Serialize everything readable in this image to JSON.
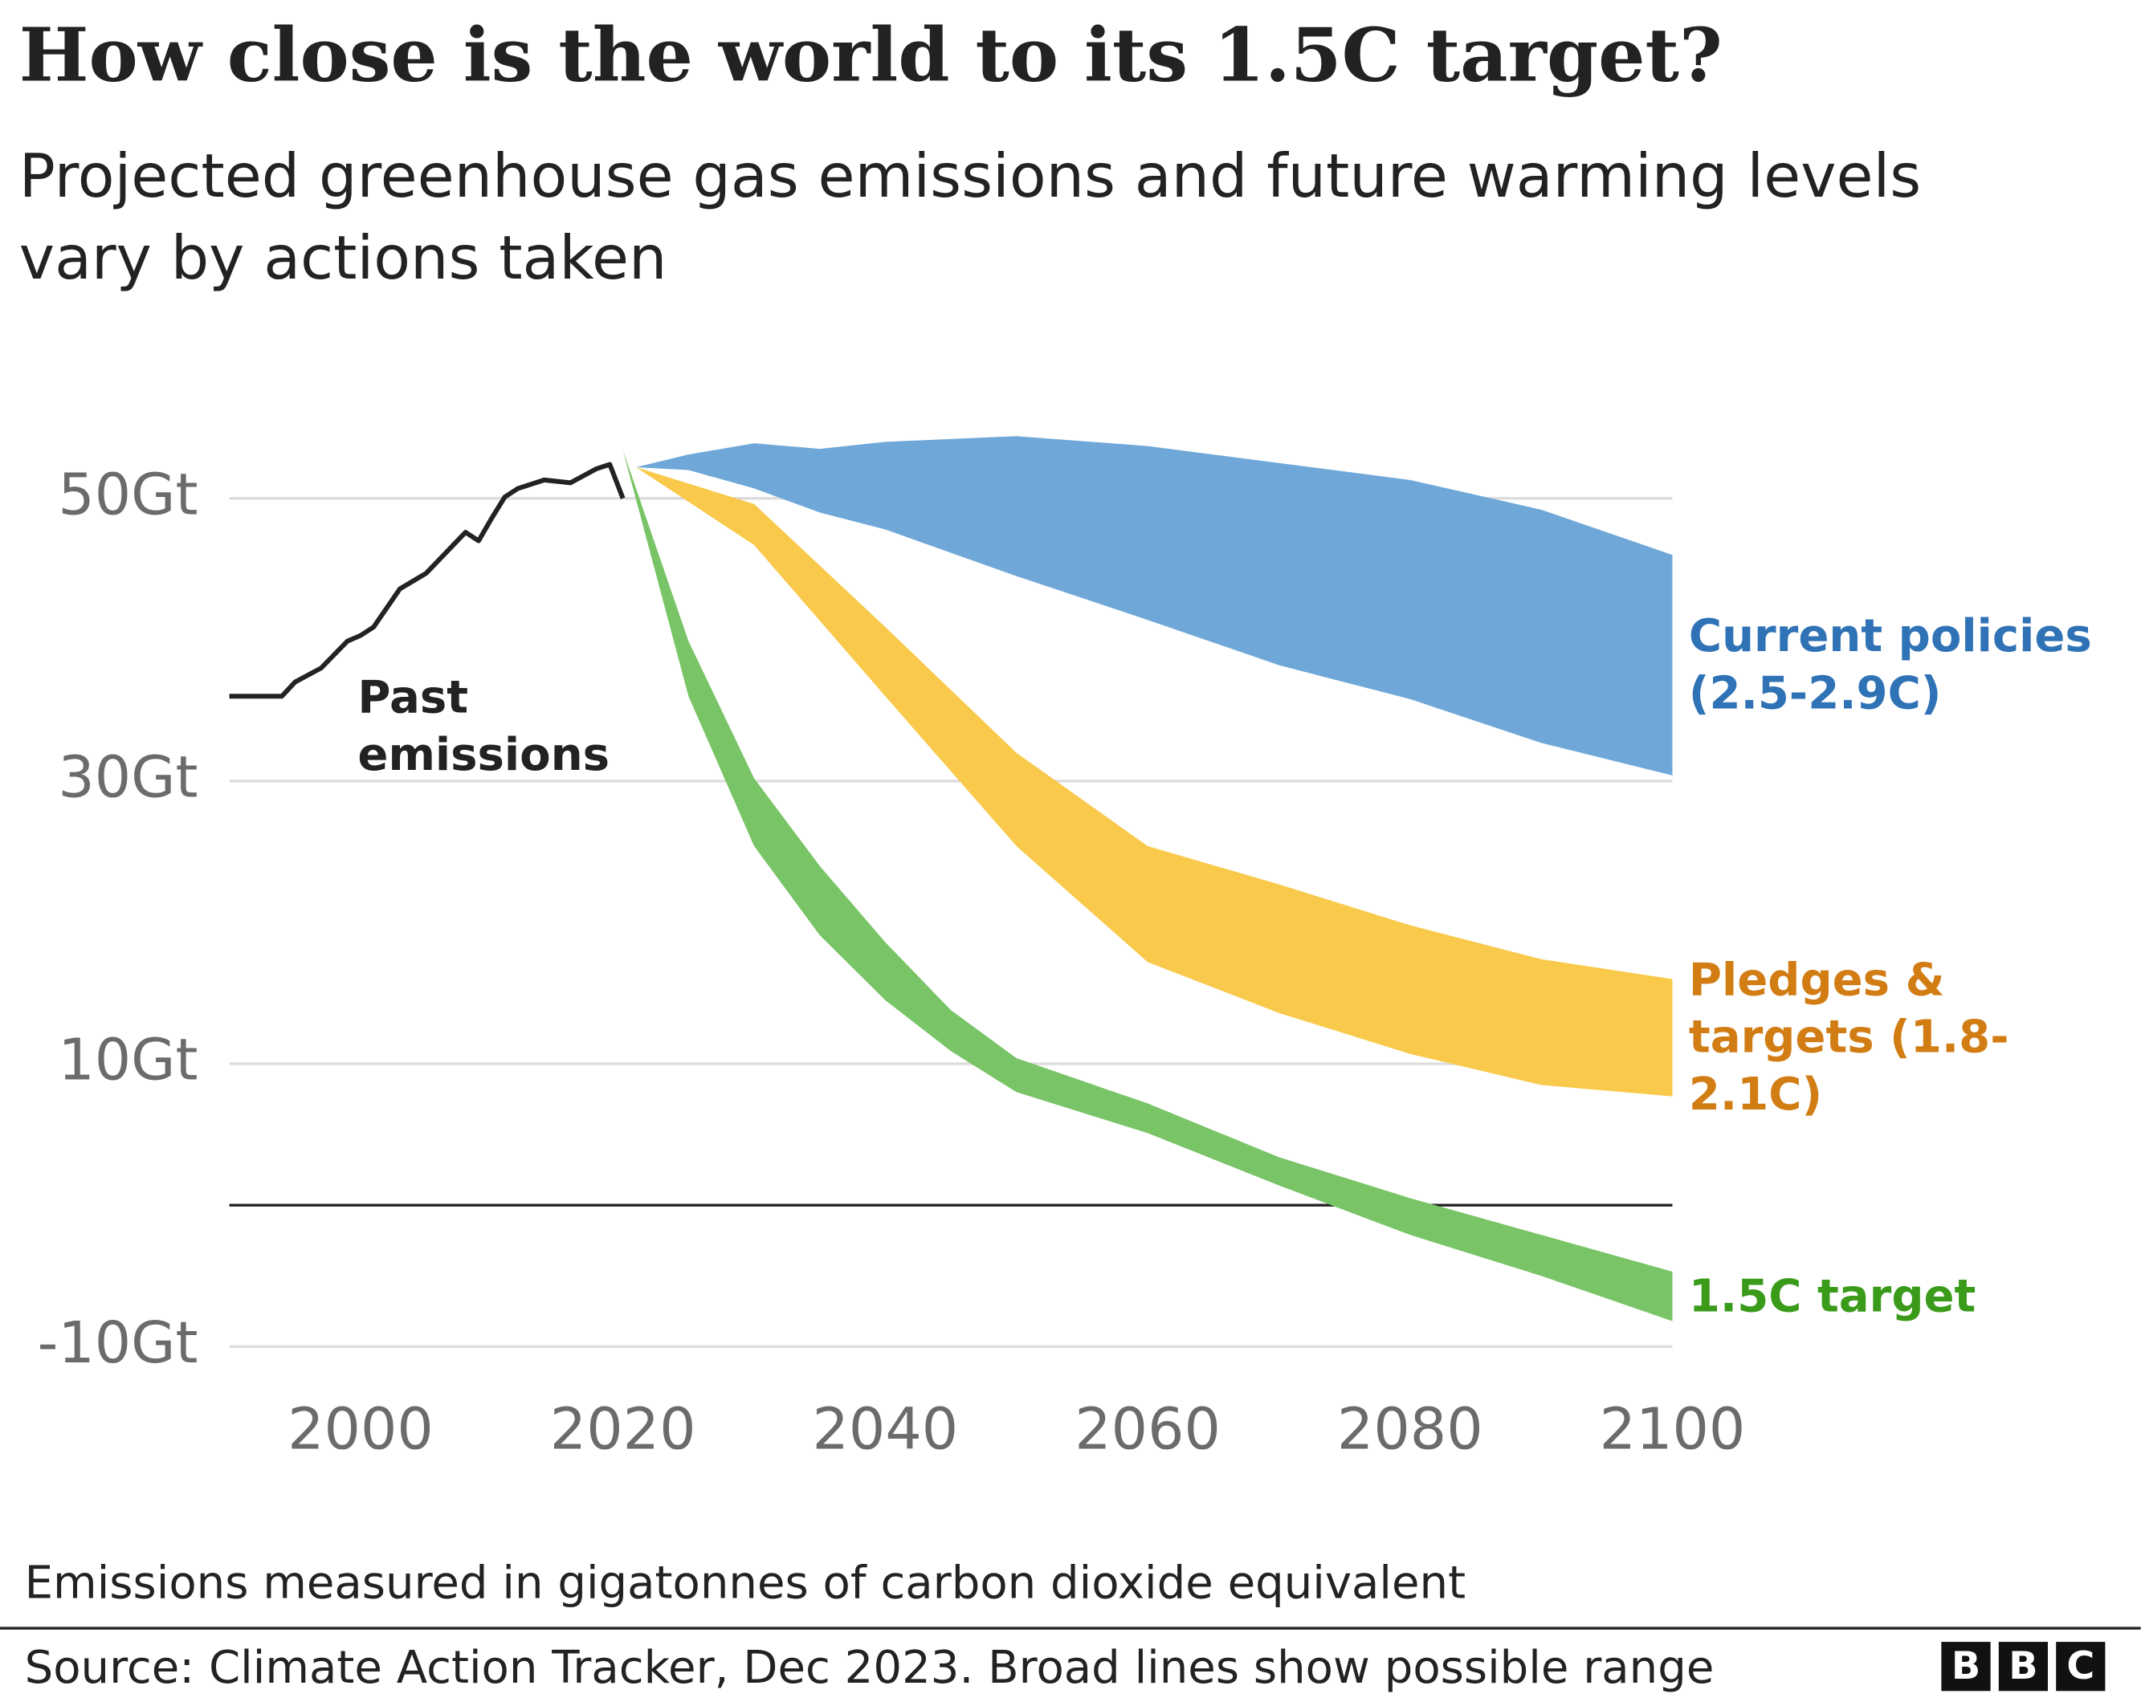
{
  "chart_data": {
    "type": "range_area",
    "title": "How close is the world to its 1.5C target?",
    "subtitle": "Projected greenhouse gas emissions and future warming levels vary by actions taken",
    "note": "Emissions measured in gigatonnes of carbon dioxide equivalent",
    "source": "Source: Climate Action Tracker, Dec 2023. Broad lines show possible range",
    "logo": [
      "B",
      "B",
      "C"
    ],
    "xlim": [
      1990,
      2100
    ],
    "ylim": [
      -11,
      56
    ],
    "xticks": [
      2000,
      2020,
      2040,
      2060,
      2080,
      2100
    ],
    "yticks": [
      {
        "value": -10,
        "label": "-10Gt"
      },
      {
        "value": 10,
        "label": "10Gt"
      },
      {
        "value": 30,
        "label": "30Gt"
      },
      {
        "value": 50,
        "label": "50Gt"
      }
    ],
    "baseline": 0,
    "grid": true,
    "series": [
      {
        "name": "Past emissions",
        "type": "line",
        "color": "#222222",
        "x": [
          1990,
          1994,
          1995,
          1997,
          1999,
          2000,
          2001,
          2003,
          2005,
          2008,
          2009,
          2010,
          2011,
          2012,
          2014,
          2016,
          2018,
          2019,
          2020
        ],
        "values": [
          36.0,
          36.0,
          37.0,
          38.0,
          39.9,
          40.3,
          40.9,
          43.6,
          44.7,
          47.6,
          47.0,
          48.6,
          50.1,
          50.7,
          51.3,
          51.1,
          52.1,
          52.4,
          50.0
        ]
      },
      {
        "name": "Current policies (2.5-2.9C)",
        "color": "#6fa8d8",
        "label_color": "#2f72b5",
        "x": [
          2021,
          2025,
          2030,
          2035,
          2040,
          2050,
          2060,
          2070,
          2080,
          2090,
          2100
        ],
        "upper": [
          52.2,
          53.1,
          53.9,
          53.5,
          54.0,
          54.4,
          53.7,
          52.5,
          51.3,
          49.2,
          46.0
        ],
        "lower": [
          52.2,
          52.0,
          50.7,
          49.0,
          47.8,
          44.5,
          41.4,
          38.2,
          35.8,
          32.7,
          30.4
        ]
      },
      {
        "name": "Pledges & targets (1.8-2.1C)",
        "color": "#f8c94a",
        "label_color": "#d27d14",
        "x": [
          2021,
          2030,
          2040,
          2050,
          2060,
          2070,
          2080,
          2090,
          2100
        ],
        "upper": [
          52.2,
          49.6,
          40.9,
          32.0,
          25.4,
          22.7,
          19.8,
          17.4,
          16.0
        ],
        "lower": [
          52.2,
          46.7,
          36.0,
          25.4,
          17.2,
          13.6,
          10.7,
          8.5,
          7.7
        ]
      },
      {
        "name": "1.5C target",
        "color": "#78c466",
        "label_color": "#3a9a1a",
        "x": [
          2020,
          2025,
          2030,
          2035,
          2040,
          2045,
          2050,
          2060,
          2070,
          2080,
          2090,
          2100
        ],
        "upper": [
          53.4,
          39.9,
          30.2,
          24.0,
          18.6,
          13.8,
          10.4,
          7.2,
          3.4,
          0.5,
          -2.1,
          -4.7
        ],
        "lower": [
          53.4,
          36.0,
          25.4,
          19.1,
          14.5,
          10.9,
          8.0,
          5.1,
          1.4,
          -2.1,
          -5.0,
          -8.2
        ]
      }
    ]
  }
}
